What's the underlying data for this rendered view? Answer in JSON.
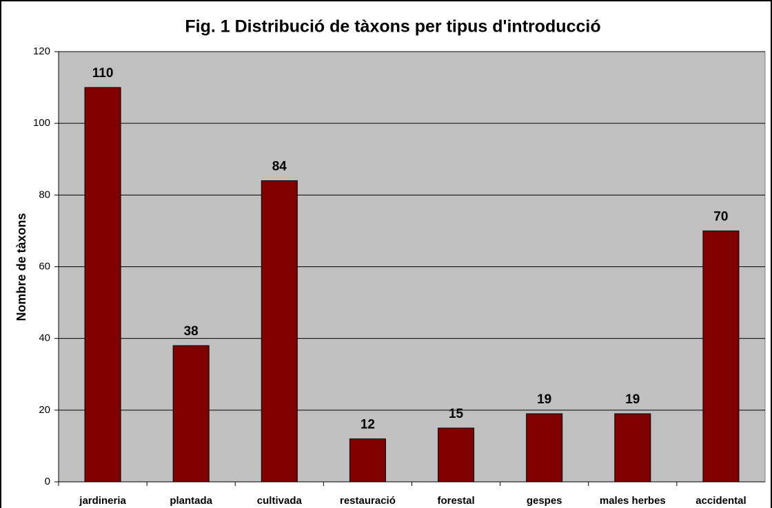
{
  "chart_data": {
    "type": "bar",
    "title": "Fig. 1 Distribució de tàxons per tipus d'introducció",
    "y_label": "Nombre de tàxons",
    "categories": [
      "jardineria",
      "plantada",
      "cultivada",
      "restauració",
      "forestal",
      "gespes",
      "males herbes",
      "accidental"
    ],
    "values": [
      110,
      38,
      84,
      12,
      15,
      19,
      19,
      70
    ],
    "color": "#800000",
    "ylim": [
      0,
      120
    ],
    "yticks": [
      0,
      20,
      40,
      60,
      80,
      100,
      120
    ],
    "grid": true
  }
}
